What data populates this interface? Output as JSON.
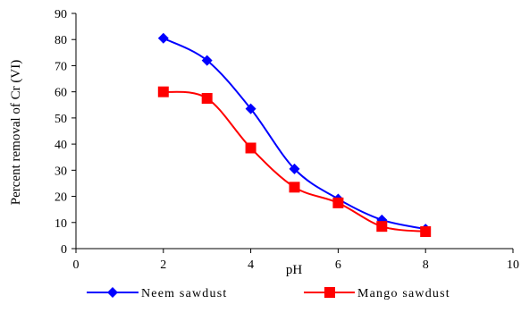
{
  "chart_data": {
    "type": "line",
    "xlabel": "pH",
    "ylabel": "Percent removal of Cr (VI)",
    "xlim": [
      0,
      10
    ],
    "ylim": [
      0,
      90
    ],
    "xticks": [
      0,
      2,
      4,
      6,
      8,
      10
    ],
    "yticks": [
      0,
      10,
      20,
      30,
      40,
      50,
      60,
      70,
      80,
      90
    ],
    "grid": false,
    "legend_position": "bottom",
    "smooth": true,
    "series": [
      {
        "name": "Neem sawdust",
        "color": "#0000ff",
        "marker": "diamond",
        "x": [
          2,
          3,
          4,
          5,
          6,
          7,
          8
        ],
        "y": [
          80.5,
          72,
          53.5,
          30.5,
          19,
          11,
          7.5
        ]
      },
      {
        "name": "Mango sawdust",
        "color": "#ff0000",
        "marker": "square",
        "x": [
          2,
          3,
          4,
          5,
          6,
          7,
          8
        ],
        "y": [
          60,
          57.5,
          38.5,
          23.5,
          17.5,
          8.5,
          6.5
        ]
      }
    ]
  }
}
